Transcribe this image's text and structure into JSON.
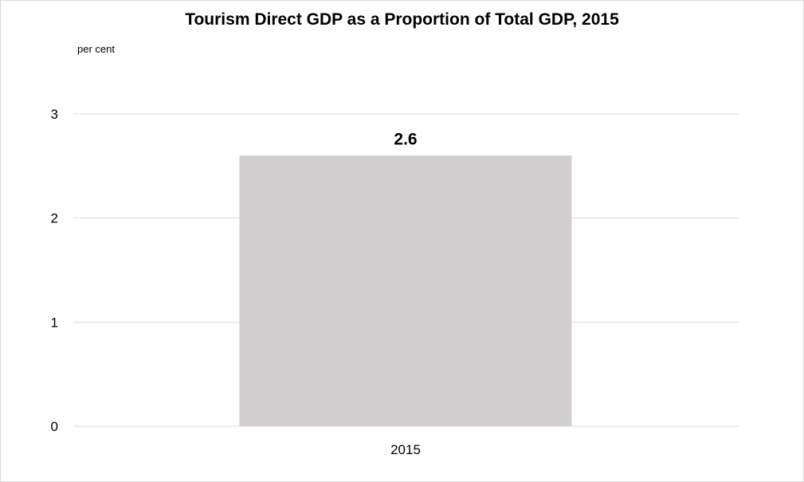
{
  "chart_data": {
    "type": "bar",
    "title": "Tourism Direct GDP as a Proportion of Total GDP, 2015",
    "unit_label": "per cent",
    "categories": [
      "2015"
    ],
    "values": [
      2.6
    ],
    "data_labels": [
      "2.6"
    ],
    "xlabel": "",
    "ylabel": "",
    "ylim": [
      0,
      3
    ],
    "yticks": [
      "0",
      "1",
      "2",
      "3"
    ],
    "grid": true,
    "legend": "none",
    "colors": {
      "bar": "#d0cece",
      "grid": "#d9d9d9",
      "text": "#000000"
    }
  }
}
